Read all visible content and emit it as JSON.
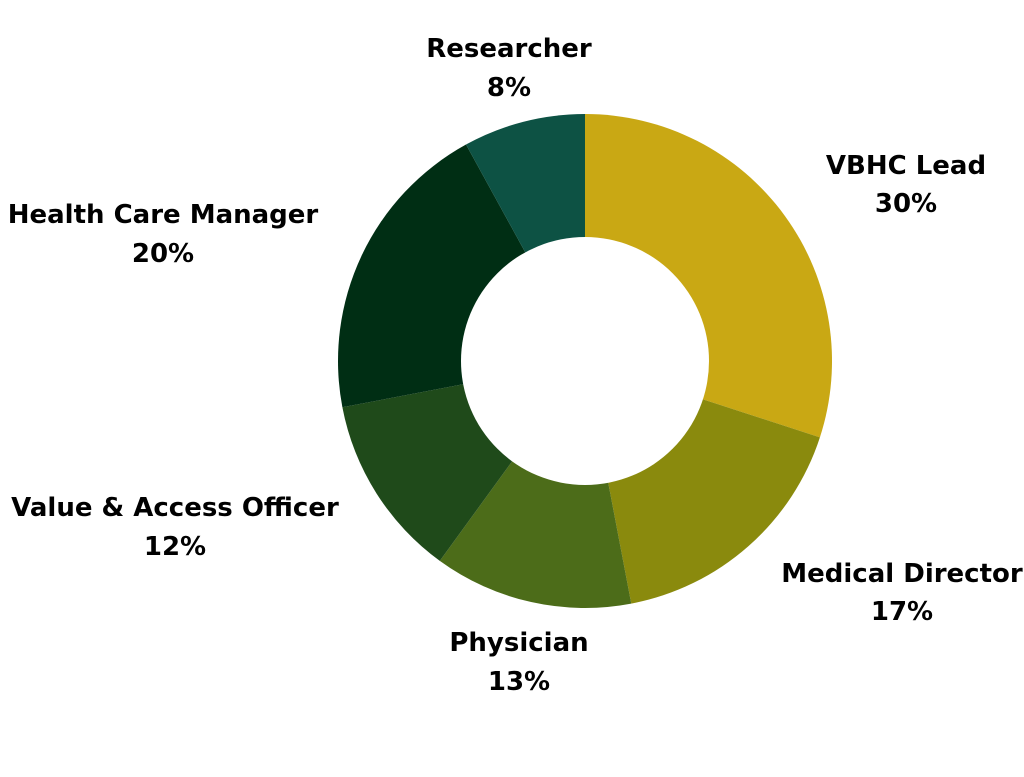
{
  "chart_data": {
    "type": "pie",
    "variant": "donut",
    "start": "12 o'clock, clockwise",
    "legend": "none (labels placed beside slices)",
    "slices": [
      {
        "label": "VBHC Lead",
        "value": 30,
        "value_text": "30%",
        "color": "#C9A814"
      },
      {
        "label": "Medical Director",
        "value": 17,
        "value_text": "17%",
        "color": "#8A8A0D"
      },
      {
        "label": "Physician",
        "value": 13,
        "value_text": "13%",
        "color": "#4C6C19"
      },
      {
        "label": "Value & Access Officer",
        "value": 12,
        "value_text": "12%",
        "color": "#1F4A1A"
      },
      {
        "label": "Health Care Manager",
        "value": 20,
        "value_text": "20%",
        "color": "#002E14"
      },
      {
        "label": "Researcher",
        "value": 8,
        "value_text": "8%",
        "color": "#0D5244"
      }
    ]
  }
}
